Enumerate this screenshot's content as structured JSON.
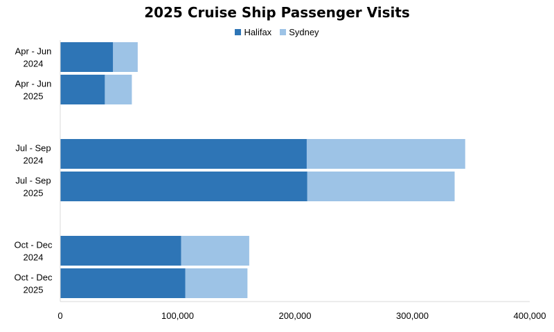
{
  "chart_data": {
    "type": "bar",
    "orientation": "horizontal",
    "stacked": true,
    "title": "2025 Cruise Ship Passenger Visits",
    "categories": [
      [
        "Apr - Jun",
        "2024"
      ],
      [
        "Apr - Jun",
        "2025"
      ],
      [
        "Jul - Sep",
        "2024"
      ],
      [
        "Jul - Sep",
        "2025"
      ],
      [
        "Oct - Dec",
        "2024"
      ],
      [
        "Oct - Dec",
        "2025"
      ]
    ],
    "groups": [
      [
        0,
        1
      ],
      [
        2,
        3
      ],
      [
        4,
        5
      ]
    ],
    "series": [
      {
        "name": "Halifax",
        "color": "#2e75b6",
        "values": [
          45000,
          38000,
          210000,
          210500,
          103000,
          106500
        ]
      },
      {
        "name": "Sydney",
        "color": "#9dc3e6",
        "values": [
          21000,
          23000,
          135000,
          125500,
          58000,
          53000
        ]
      }
    ],
    "xlim": [
      0,
      400000
    ],
    "xticks": [
      0,
      100000,
      200000,
      300000,
      400000
    ],
    "xtick_labels": [
      "0",
      "100,000",
      "200,000",
      "300,000",
      "400,000"
    ],
    "grid": false,
    "legend_position": "top"
  }
}
